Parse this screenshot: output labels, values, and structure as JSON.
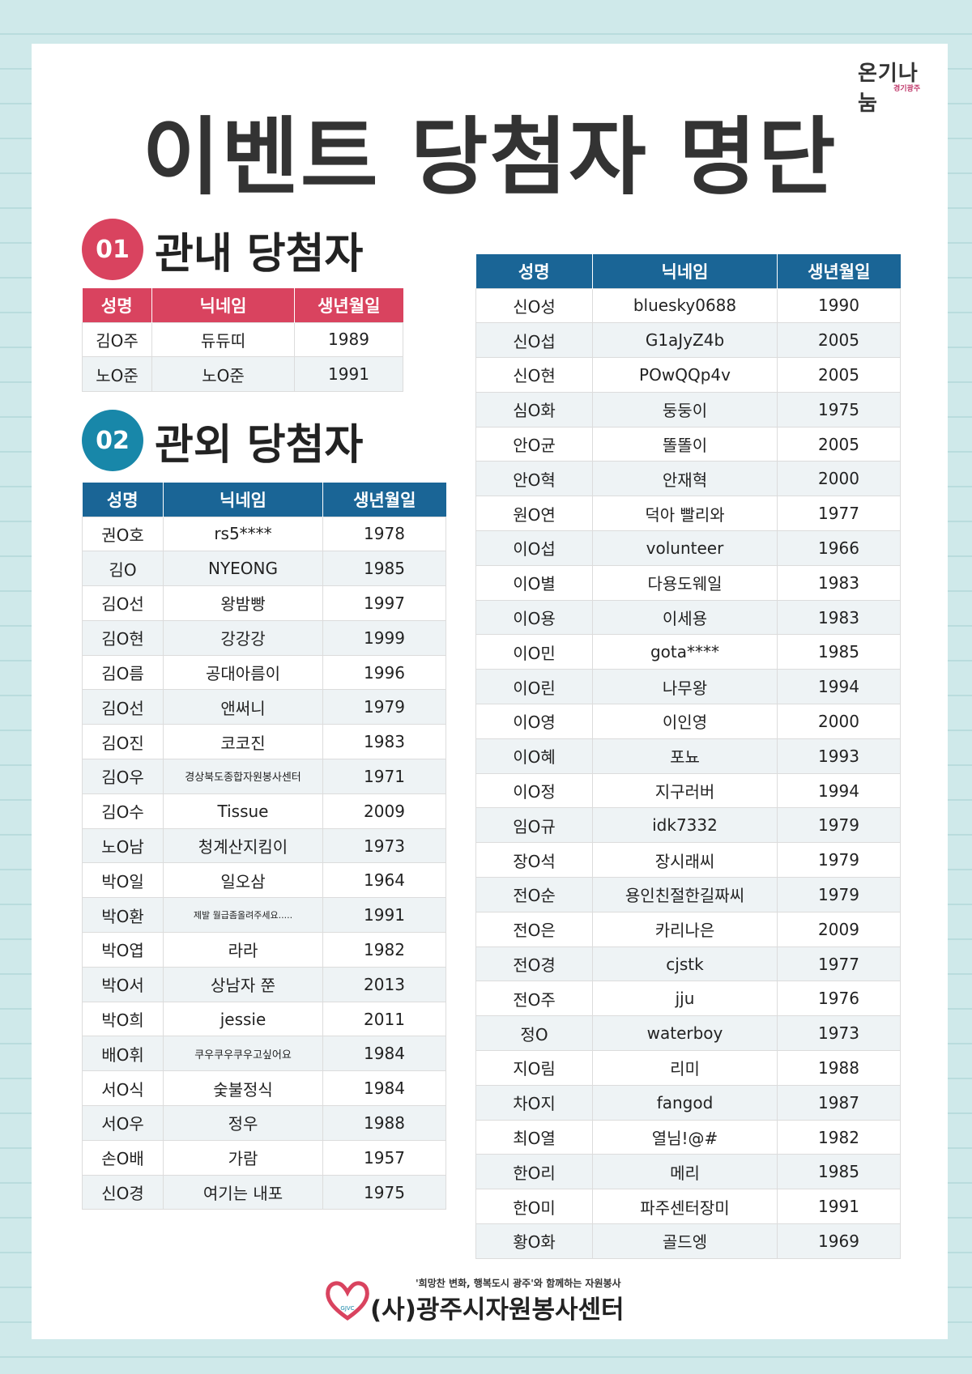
{
  "logo": {
    "main": "온기나눔",
    "sub": "경기광주"
  },
  "title": "이벤트 당첨자 명단",
  "section1": {
    "number": "01",
    "title": "관내 당첨자"
  },
  "section2": {
    "number": "02",
    "title": "관외 당첨자"
  },
  "headers": [
    "성명",
    "닉네임",
    "생년월일"
  ],
  "table_in": [
    [
      "김O주",
      "듀듀띠",
      "1989"
    ],
    [
      "노O준",
      "노O준",
      "1991"
    ]
  ],
  "table_out_left": [
    [
      "권O호",
      "rs5****",
      "1978"
    ],
    [
      "김O",
      "NYEONG",
      "1985"
    ],
    [
      "김O선",
      "왕밤빵",
      "1997"
    ],
    [
      "김O현",
      "강강강",
      "1999"
    ],
    [
      "김O름",
      "공대아름이",
      "1996"
    ],
    [
      "김O선",
      "앤써니",
      "1979"
    ],
    [
      "김O진",
      "코코진",
      "1983"
    ],
    [
      "김O우",
      "경상북도종합자원봉사센터",
      "1971"
    ],
    [
      "김O수",
      "Tissue",
      "2009"
    ],
    [
      "노O남",
      "청계산지킴이",
      "1973"
    ],
    [
      "박O일",
      "일오삼",
      "1964"
    ],
    [
      "박O환",
      "제발 월급좀올려주세요.....",
      "1991"
    ],
    [
      "박O엽",
      "라라",
      "1982"
    ],
    [
      "박O서",
      "상남자 쭌",
      "2013"
    ],
    [
      "박O희",
      "jessie",
      "2011"
    ],
    [
      "배O휘",
      "쿠우쿠우쿠우고싶어요",
      "1984"
    ],
    [
      "서O식",
      "숯불정식",
      "1984"
    ],
    [
      "서O우",
      "정우",
      "1988"
    ],
    [
      "손O배",
      "가람",
      "1957"
    ],
    [
      "신O경",
      "여기는 내포",
      "1975"
    ]
  ],
  "table_out_right": [
    [
      "신O성",
      "bluesky0688",
      "1990"
    ],
    [
      "신O섭",
      "G1aJyZ4b",
      "2005"
    ],
    [
      "신O현",
      "POwQQp4v",
      "2005"
    ],
    [
      "심O화",
      "둥둥이",
      "1975"
    ],
    [
      "안O균",
      "똘똘이",
      "2005"
    ],
    [
      "안O혁",
      "안재혁",
      "2000"
    ],
    [
      "원O연",
      "덕아 빨리와",
      "1977"
    ],
    [
      "이O섭",
      "volunteer",
      "1966"
    ],
    [
      "이O별",
      "다용도웨일",
      "1983"
    ],
    [
      "이O용",
      "이세용",
      "1983"
    ],
    [
      "이O민",
      "gota****",
      "1985"
    ],
    [
      "이O린",
      "나무왕",
      "1994"
    ],
    [
      "이O영",
      "이인영",
      "2000"
    ],
    [
      "이O혜",
      "포뇨",
      "1993"
    ],
    [
      "이O정",
      "지구러버",
      "1994"
    ],
    [
      "임O규",
      "idk7332",
      "1979"
    ],
    [
      "장O석",
      "장시래씨",
      "1979"
    ],
    [
      "전O순",
      "용인친절한길짜씨",
      "1979"
    ],
    [
      "전O은",
      "카리나은",
      "2009"
    ],
    [
      "전O경",
      "cjstk",
      "1977"
    ],
    [
      "전O주",
      "jju",
      "1976"
    ],
    [
      "정O",
      "waterboy",
      "1973"
    ],
    [
      "지O림",
      "리미",
      "1988"
    ],
    [
      "차O지",
      "fangod",
      "1987"
    ],
    [
      "최O열",
      "열님!@#",
      "1982"
    ],
    [
      "한O리",
      "메리",
      "1985"
    ],
    [
      "한O미",
      "파주센터장미",
      "1991"
    ],
    [
      "황O화",
      "골드엥",
      "1969"
    ]
  ],
  "footer": {
    "tagline": "'희망찬 변화, 행복도시 광주'와 함께하는 자원봉사",
    "org": "(사)광주시자원봉사센터",
    "heart_label": "GJVC"
  },
  "colors": {
    "red": "#d9435f",
    "teal": "#1887a9",
    "blue": "#1a6596"
  }
}
